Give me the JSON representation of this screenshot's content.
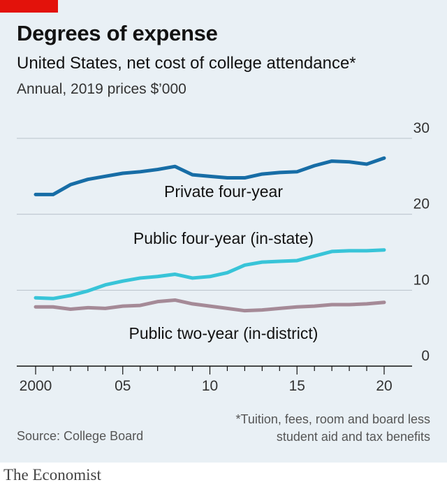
{
  "header": {
    "title": "Degrees of expense",
    "subtitle": "United States, net cost of college attendance*",
    "units": "Annual, 2019 prices $’000"
  },
  "footer": {
    "footnote_line1": "*Tuition, fees, room and board less",
    "footnote_line2": "student aid and tax benefits",
    "source": "Source: College Board",
    "brand": "The Economist"
  },
  "colors": {
    "background": "#e9f0f5",
    "brand_red": "#e3120b",
    "private": "#176da6",
    "public_four": "#38c4d8",
    "public_two": "#a58a97",
    "grid": "#b9c3ca"
  },
  "chart_data": {
    "type": "line",
    "x": [
      2000,
      2001,
      2002,
      2003,
      2004,
      2005,
      2006,
      2007,
      2008,
      2009,
      2010,
      2011,
      2012,
      2013,
      2014,
      2015,
      2016,
      2017,
      2018,
      2019,
      2020
    ],
    "series": [
      {
        "name": "Private four-year",
        "color": "#176da6",
        "values": [
          22.6,
          22.6,
          23.9,
          24.6,
          25.0,
          25.4,
          25.6,
          25.9,
          26.3,
          25.2,
          25.0,
          24.8,
          24.8,
          25.3,
          25.5,
          25.6,
          26.4,
          27.0,
          26.9,
          26.6,
          27.4
        ]
      },
      {
        "name": "Public four-year (in-state)",
        "color": "#38c4d8",
        "values": [
          9.0,
          8.9,
          9.3,
          9.9,
          10.7,
          11.2,
          11.6,
          11.8,
          12.1,
          11.6,
          11.8,
          12.3,
          13.3,
          13.7,
          13.8,
          13.9,
          14.5,
          15.1,
          15.2,
          15.2,
          15.3
        ]
      },
      {
        "name": "Public two-year (in-district)",
        "color": "#a58a97",
        "values": [
          7.8,
          7.8,
          7.5,
          7.7,
          7.6,
          7.9,
          8.0,
          8.5,
          8.7,
          8.2,
          7.9,
          7.6,
          7.3,
          7.4,
          7.6,
          7.8,
          7.9,
          8.1,
          8.1,
          8.2,
          8.4
        ]
      }
    ],
    "xticks": [
      2000,
      2005,
      2010,
      2015,
      2020
    ],
    "xtick_labels": [
      "2000",
      "05",
      "10",
      "15",
      "20"
    ],
    "yticks": [
      0,
      10,
      20,
      30
    ],
    "ytick_labels": [
      "0",
      "10",
      "20",
      "30"
    ],
    "xlim": [
      2000,
      2020
    ],
    "ylim": [
      0,
      30
    ],
    "y_axis_side": "right",
    "grid": true
  }
}
